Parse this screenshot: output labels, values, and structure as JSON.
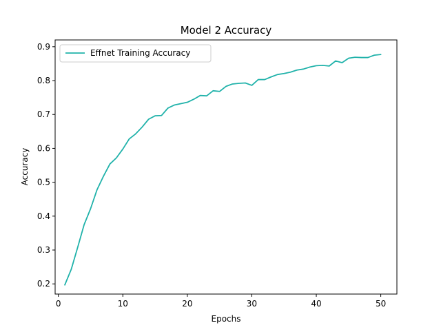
{
  "chart_data": {
    "type": "line",
    "title": "Model 2 Accuracy",
    "xlabel": "Epochs",
    "ylabel": "Accuracy",
    "xlim": [
      -0.5,
      52.5
    ],
    "ylim": [
      0.17,
      0.92
    ],
    "xticks": [
      0,
      10,
      20,
      30,
      40,
      50
    ],
    "yticks": [
      0.2,
      0.3,
      0.4,
      0.5,
      0.6,
      0.7,
      0.8,
      0.9
    ],
    "xtick_labels": [
      "0",
      "10",
      "20",
      "30",
      "40",
      "50"
    ],
    "ytick_labels": [
      "0.2",
      "0.3",
      "0.4",
      "0.5",
      "0.6",
      "0.7",
      "0.8",
      "0.9"
    ],
    "grid": false,
    "legend_position": "top-left",
    "series": [
      {
        "name": "Effnet Training Accuracy",
        "color": "#20b2aa",
        "x": [
          1,
          2,
          3,
          4,
          5,
          6,
          7,
          8,
          9,
          10,
          11,
          12,
          13,
          14,
          15,
          16,
          17,
          18,
          19,
          20,
          21,
          22,
          23,
          24,
          25,
          26,
          27,
          28,
          29,
          30,
          31,
          32,
          33,
          34,
          35,
          36,
          37,
          38,
          39,
          40,
          41,
          42,
          43,
          44,
          45,
          46,
          47,
          48,
          49,
          50
        ],
        "y": [
          0.197,
          0.243,
          0.308,
          0.375,
          0.422,
          0.478,
          0.518,
          0.554,
          0.572,
          0.598,
          0.628,
          0.643,
          0.663,
          0.686,
          0.696,
          0.697,
          0.719,
          0.728,
          0.732,
          0.736,
          0.745,
          0.756,
          0.755,
          0.77,
          0.768,
          0.783,
          0.79,
          0.792,
          0.793,
          0.786,
          0.803,
          0.803,
          0.811,
          0.818,
          0.821,
          0.825,
          0.831,
          0.834,
          0.84,
          0.844,
          0.845,
          0.843,
          0.858,
          0.853,
          0.866,
          0.869,
          0.868,
          0.868,
          0.875,
          0.877
        ]
      }
    ]
  }
}
